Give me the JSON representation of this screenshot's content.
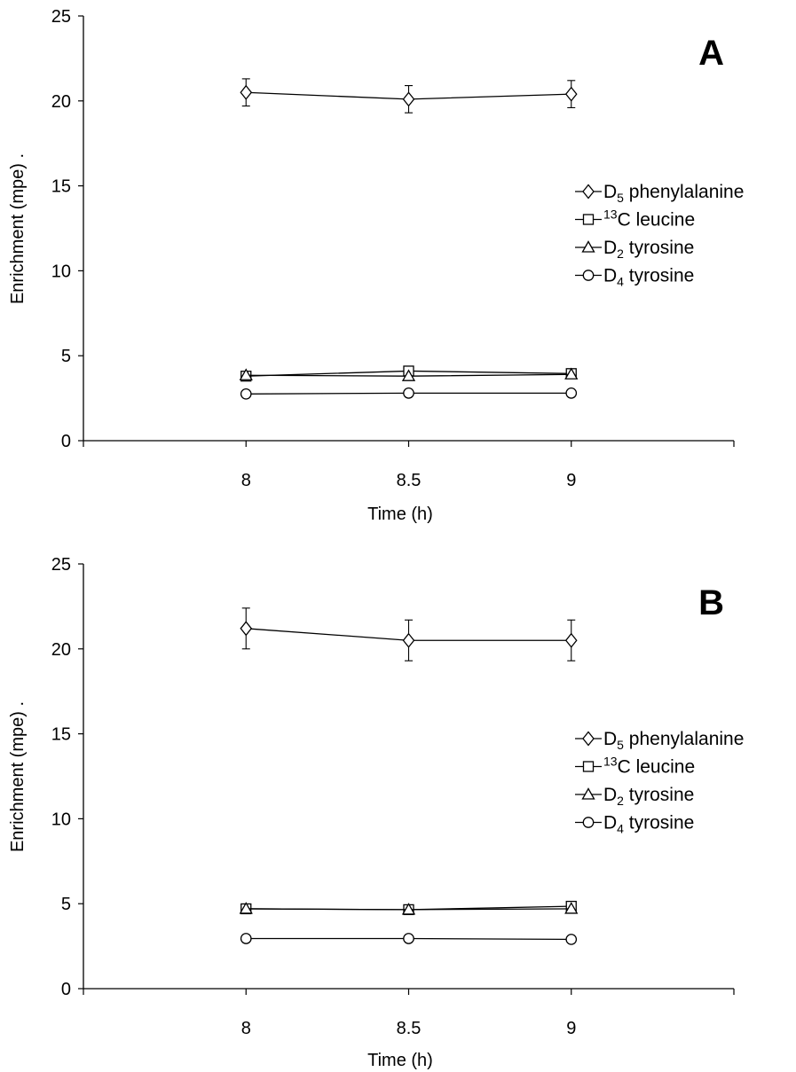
{
  "chart_data": [
    {
      "type": "line",
      "panel_label": "A",
      "xlabel": "Time (h)",
      "ylabel": "Enrichment (mpe) .",
      "x_ticks": [
        "8",
        "8.5",
        "9"
      ],
      "y_ticks": [
        "0",
        "5",
        "10",
        "15",
        "20",
        "25"
      ],
      "xlim": [
        7.5,
        9.5
      ],
      "ylim": [
        0,
        25
      ],
      "grid": false,
      "legend_position": "right",
      "series": [
        {
          "name": "D5 phenylalanine",
          "legend": {
            "pre": "D",
            "sub": "5",
            "sup": "",
            "post": " phenylalanine"
          },
          "marker": "diamond",
          "x": [
            8,
            8.5,
            9
          ],
          "y": [
            20.5,
            20.1,
            20.4
          ],
          "err": [
            0.8,
            0.8,
            0.8
          ]
        },
        {
          "name": "13C leucine",
          "legend": {
            "pre": "",
            "sub": "",
            "sup": "13",
            "post": "C leucine"
          },
          "marker": "square",
          "x": [
            8,
            8.5,
            9
          ],
          "y": [
            3.8,
            4.1,
            3.95
          ],
          "err": [
            0,
            0,
            0
          ]
        },
        {
          "name": "D2 tyrosine",
          "legend": {
            "pre": "D",
            "sub": "2",
            "sup": "",
            "post": " tyrosine"
          },
          "marker": "triangle",
          "x": [
            8,
            8.5,
            9
          ],
          "y": [
            3.85,
            3.8,
            3.9
          ],
          "err": [
            0,
            0,
            0
          ]
        },
        {
          "name": "D4 tyrosine",
          "legend": {
            "pre": "D",
            "sub": "4",
            "sup": "",
            "post": " tyrosine"
          },
          "marker": "circle",
          "x": [
            8,
            8.5,
            9
          ],
          "y": [
            2.75,
            2.8,
            2.8
          ],
          "err": [
            0,
            0,
            0
          ]
        }
      ]
    },
    {
      "type": "line",
      "panel_label": "B",
      "xlabel": "Time (h)",
      "ylabel": "Enrichment (mpe) .",
      "x_ticks": [
        "8",
        "8.5",
        "9"
      ],
      "y_ticks": [
        "0",
        "5",
        "10",
        "15",
        "20",
        "25"
      ],
      "xlim": [
        7.5,
        9.5
      ],
      "ylim": [
        0,
        25
      ],
      "grid": false,
      "legend_position": "right",
      "series": [
        {
          "name": "D5 phenylalanine",
          "legend": {
            "pre": "D",
            "sub": "5",
            "sup": "",
            "post": " phenylalanine"
          },
          "marker": "diamond",
          "x": [
            8,
            8.5,
            9
          ],
          "y": [
            21.2,
            20.5,
            20.5
          ],
          "err": [
            1.2,
            1.2,
            1.2
          ]
        },
        {
          "name": "13C leucine",
          "legend": {
            "pre": "",
            "sub": "",
            "sup": "13",
            "post": "C leucine"
          },
          "marker": "square",
          "x": [
            8,
            8.5,
            9
          ],
          "y": [
            4.7,
            4.65,
            4.85
          ],
          "err": [
            0,
            0,
            0
          ]
        },
        {
          "name": "D2 tyrosine",
          "legend": {
            "pre": "D",
            "sub": "2",
            "sup": "",
            "post": " tyrosine"
          },
          "marker": "triangle",
          "x": [
            8,
            8.5,
            9
          ],
          "y": [
            4.7,
            4.65,
            4.7
          ],
          "err": [
            0,
            0,
            0
          ]
        },
        {
          "name": "D4 tyrosine",
          "legend": {
            "pre": "D",
            "sub": "4",
            "sup": "",
            "post": " tyrosine"
          },
          "marker": "circle",
          "x": [
            8,
            8.5,
            9
          ],
          "y": [
            2.95,
            2.95,
            2.9
          ],
          "err": [
            0,
            0,
            0
          ]
        }
      ]
    }
  ]
}
